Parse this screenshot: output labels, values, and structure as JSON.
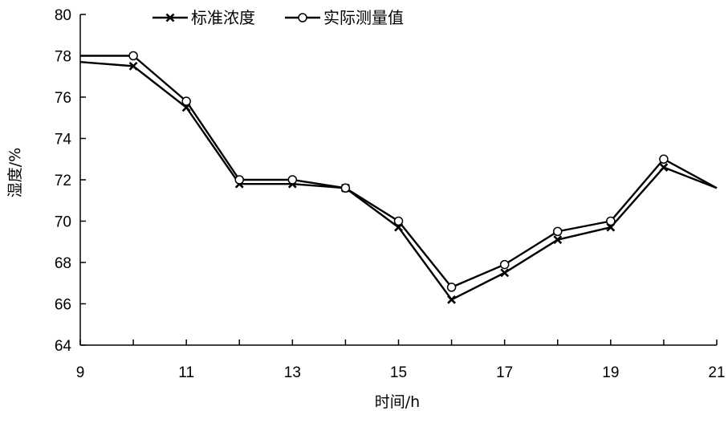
{
  "chart_data": {
    "type": "line",
    "title": "",
    "xlabel": "时间/h",
    "ylabel": "湿度/%",
    "xlim": [
      9,
      21
    ],
    "ylim": [
      64,
      80
    ],
    "x_ticks": [
      "9",
      "11",
      "13",
      "15",
      "17",
      "19",
      "21"
    ],
    "y_ticks": [
      "64",
      "66",
      "68",
      "70",
      "72",
      "74",
      "76",
      "78",
      "80"
    ],
    "grid": false,
    "legend_position": "top",
    "series": [
      {
        "name": "标准浓度",
        "marker": "x",
        "color": "#000000",
        "x": [
          9,
          10,
          11,
          12,
          13,
          14,
          15,
          16,
          17,
          18,
          19,
          20,
          21
        ],
        "y": [
          77.7,
          77.5,
          75.5,
          71.8,
          71.8,
          71.6,
          69.7,
          66.2,
          67.5,
          69.1,
          69.7,
          72.6,
          71.6
        ]
      },
      {
        "name": "实际测量值",
        "marker": "circle",
        "color": "#000000",
        "x": [
          9,
          10,
          11,
          12,
          13,
          14,
          15,
          16,
          17,
          18,
          19,
          20,
          21
        ],
        "y": [
          78.0,
          78.0,
          75.8,
          72.0,
          72.0,
          71.6,
          70.0,
          66.8,
          67.9,
          69.5,
          70.0,
          73.0,
          71.6
        ]
      }
    ]
  }
}
